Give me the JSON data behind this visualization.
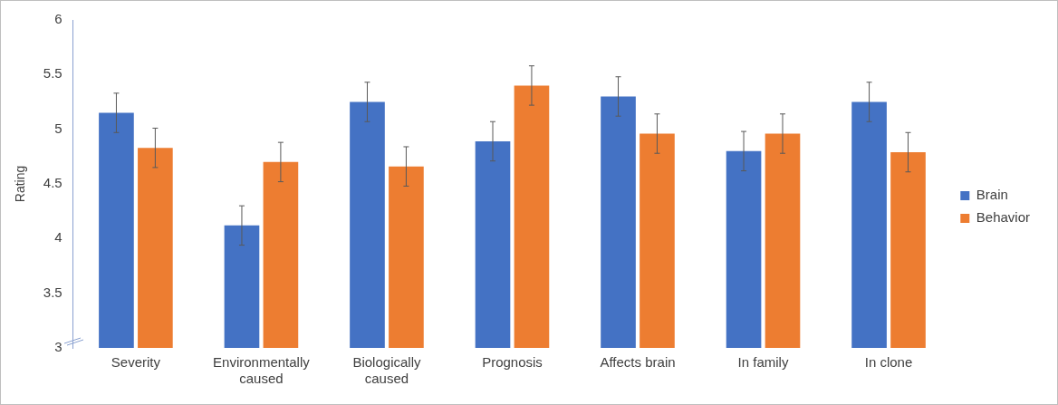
{
  "chart_data": {
    "type": "bar",
    "ylabel": "Rating",
    "categories": [
      "Severity",
      "Environmentally caused",
      "Biologically caused",
      "Prognosis",
      "Affects brain",
      "In family",
      "In clone"
    ],
    "series": [
      {
        "name": "Brain",
        "color": "#4472c4",
        "values": [
          5.15,
          4.12,
          5.25,
          4.89,
          5.3,
          4.8,
          5.25
        ],
        "errors": [
          0.18,
          0.18,
          0.18,
          0.18,
          0.18,
          0.18,
          0.18
        ]
      },
      {
        "name": "Behavior",
        "color": "#ed7d31",
        "values": [
          4.83,
          4.7,
          4.66,
          5.4,
          4.96,
          4.96,
          4.79
        ],
        "errors": [
          0.18,
          0.18,
          0.18,
          0.18,
          0.18,
          0.18,
          0.18
        ]
      }
    ],
    "ylim": [
      3,
      6
    ],
    "yticks": [
      3,
      3.5,
      4,
      4.5,
      5,
      5.5,
      6
    ],
    "grid": false,
    "legend": "right"
  }
}
